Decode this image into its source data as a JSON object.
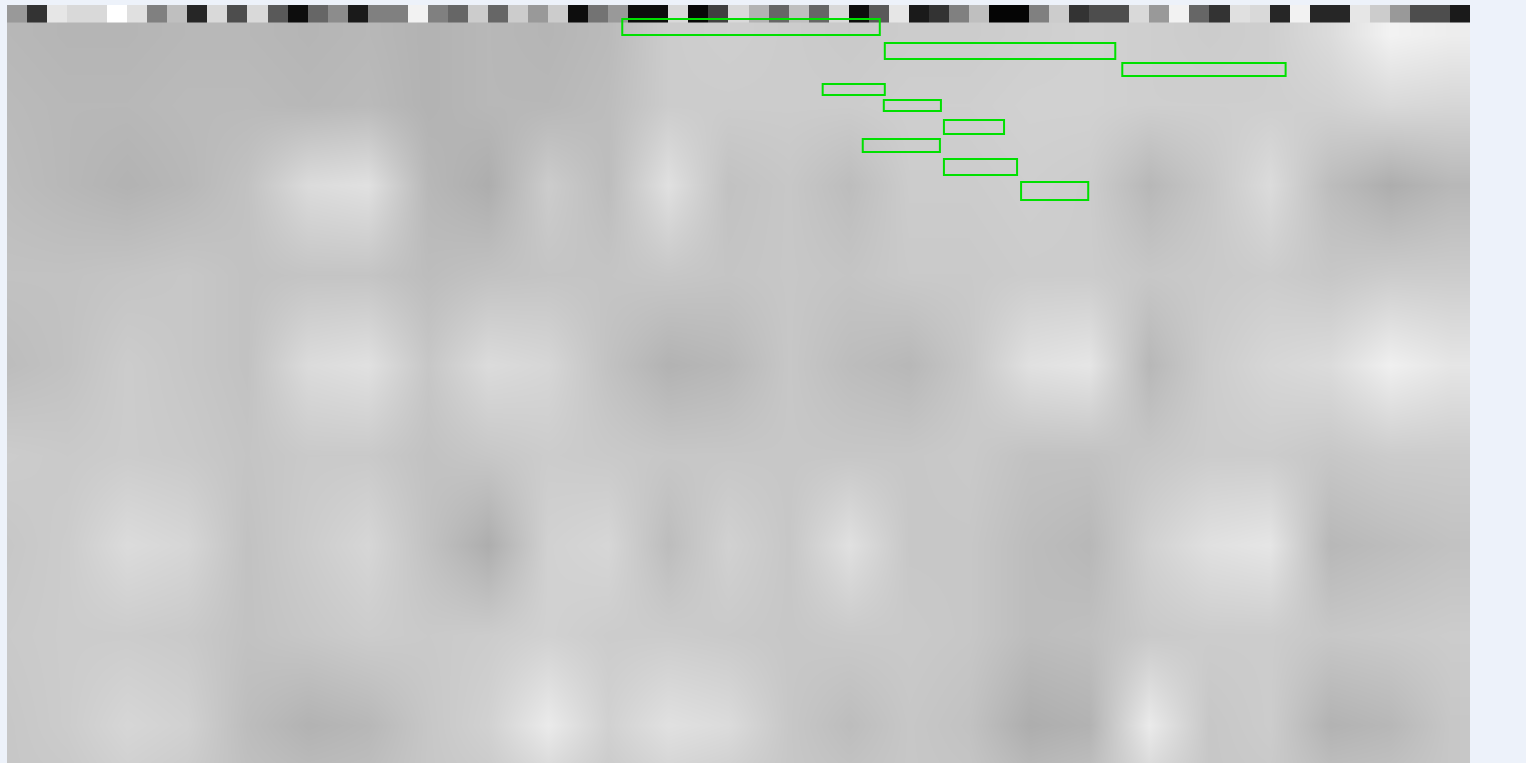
{
  "chart_data": {
    "type": "heatmap",
    "tick_labels": false,
    "xlim": [
      0,
      73
    ],
    "ylim": [
      37.9,
      0
    ],
    "zlim": [
      0,
      1
    ],
    "strip": [
      0.6,
      0.2,
      0.9,
      0.85,
      0.85,
      1.0,
      0.88,
      0.5,
      0.75,
      0.15,
      0.85,
      0.3,
      0.85,
      0.35,
      0.05,
      0.4,
      0.55,
      0.1,
      0.5,
      0.5,
      0.95,
      0.5,
      0.4,
      0.8,
      0.4,
      0.8,
      0.6,
      0.8,
      0.05,
      0.45,
      0.6,
      0.05,
      0.05,
      0.85,
      0.03,
      0.25,
      0.85,
      0.7,
      0.4,
      0.75,
      0.4,
      0.85,
      0.05,
      0.35,
      0.9,
      0.1,
      0.2,
      0.5,
      0.75,
      0.02,
      0.02,
      0.5,
      0.8,
      0.2,
      0.3,
      0.3,
      0.85,
      0.6,
      0.95,
      0.4,
      0.2,
      0.88,
      0.85,
      0.15,
      0.95,
      0.15,
      0.15,
      0.9,
      0.8,
      0.6,
      0.3,
      0.3,
      0.1
    ],
    "cells": {
      "x": [
        0,
        3,
        6,
        9,
        12,
        15,
        18,
        21,
        24,
        27,
        30,
        33,
        36,
        39,
        42,
        45,
        48,
        51,
        54,
        57,
        60,
        63,
        66,
        69,
        72
      ],
      "y": [
        1.5,
        5,
        9,
        13.5,
        18,
        22.5,
        27,
        31.5,
        36,
        38
      ],
      "z": [
        [
          0.72,
          0.71,
          0.71,
          0.72,
          0.72,
          0.71,
          0.72,
          0.7,
          0.72,
          0.71,
          0.73,
          0.8,
          0.81,
          0.8,
          0.79,
          0.8,
          0.8,
          0.81,
          0.82,
          0.81,
          0.8,
          0.81,
          0.86,
          0.95,
          0.93
        ],
        [
          0.73,
          0.72,
          0.72,
          0.73,
          0.73,
          0.72,
          0.73,
          0.7,
          0.72,
          0.72,
          0.74,
          0.8,
          0.8,
          0.8,
          0.8,
          0.81,
          0.81,
          0.82,
          0.82,
          0.81,
          0.81,
          0.81,
          0.82,
          0.85,
          0.84
        ],
        [
          0.74,
          0.72,
          0.7,
          0.72,
          0.76,
          0.86,
          0.88,
          0.72,
          0.68,
          0.8,
          0.74,
          0.88,
          0.76,
          0.78,
          0.74,
          0.8,
          0.8,
          0.81,
          0.8,
          0.72,
          0.78,
          0.86,
          0.74,
          0.68,
          0.72
        ],
        [
          0.76,
          0.76,
          0.77,
          0.78,
          0.76,
          0.77,
          0.77,
          0.74,
          0.76,
          0.77,
          0.77,
          0.78,
          0.77,
          0.78,
          0.77,
          0.79,
          0.79,
          0.8,
          0.8,
          0.78,
          0.79,
          0.8,
          0.78,
          0.8,
          0.8
        ],
        [
          0.74,
          0.76,
          0.8,
          0.78,
          0.76,
          0.86,
          0.88,
          0.78,
          0.86,
          0.84,
          0.76,
          0.7,
          0.72,
          0.78,
          0.74,
          0.72,
          0.78,
          0.88,
          0.9,
          0.72,
          0.8,
          0.84,
          0.86,
          0.94,
          0.9
        ],
        [
          0.8,
          0.79,
          0.8,
          0.79,
          0.77,
          0.79,
          0.79,
          0.76,
          0.78,
          0.8,
          0.79,
          0.78,
          0.78,
          0.78,
          0.78,
          0.78,
          0.79,
          0.76,
          0.76,
          0.78,
          0.8,
          0.8,
          0.78,
          0.8,
          0.8
        ],
        [
          0.78,
          0.8,
          0.86,
          0.84,
          0.76,
          0.8,
          0.84,
          0.76,
          0.68,
          0.82,
          0.84,
          0.74,
          0.82,
          0.78,
          0.88,
          0.78,
          0.78,
          0.74,
          0.72,
          0.82,
          0.88,
          0.9,
          0.72,
          0.74,
          0.76
        ],
        [
          0.79,
          0.8,
          0.8,
          0.79,
          0.76,
          0.78,
          0.8,
          0.79,
          0.8,
          0.82,
          0.8,
          0.8,
          0.79,
          0.78,
          0.79,
          0.79,
          0.78,
          0.74,
          0.75,
          0.79,
          0.8,
          0.8,
          0.78,
          0.79,
          0.8
        ],
        [
          0.78,
          0.8,
          0.84,
          0.82,
          0.74,
          0.7,
          0.72,
          0.78,
          0.82,
          0.92,
          0.82,
          0.88,
          0.86,
          0.78,
          0.74,
          0.78,
          0.76,
          0.68,
          0.7,
          0.92,
          0.78,
          0.8,
          0.7,
          0.72,
          0.78
        ],
        [
          0.78,
          0.79,
          0.82,
          0.8,
          0.75,
          0.73,
          0.74,
          0.78,
          0.8,
          0.86,
          0.8,
          0.84,
          0.82,
          0.78,
          0.76,
          0.78,
          0.77,
          0.72,
          0.74,
          0.86,
          0.78,
          0.79,
          0.74,
          0.75,
          0.78
        ]
      ]
    },
    "boxes": [
      {
        "x0": 30.7,
        "x1": 43.55,
        "y0": 0.7,
        "y1": 1.5
      },
      {
        "x0": 43.8,
        "x1": 55.3,
        "y0": 1.9,
        "y1": 2.7
      },
      {
        "x0": 55.65,
        "x1": 63.8,
        "y0": 2.9,
        "y1": 3.55
      },
      {
        "x0": 40.7,
        "x1": 43.8,
        "y0": 3.95,
        "y1": 4.5
      },
      {
        "x0": 43.75,
        "x1": 46.6,
        "y0": 4.75,
        "y1": 5.3
      },
      {
        "x0": 46.75,
        "x1": 49.75,
        "y0": 5.75,
        "y1": 6.45
      },
      {
        "x0": 42.7,
        "x1": 46.55,
        "y0": 6.7,
        "y1": 7.35
      },
      {
        "x0": 46.75,
        "x1": 50.4,
        "y0": 7.7,
        "y1": 8.5
      },
      {
        "x0": 50.6,
        "x1": 53.95,
        "y0": 8.85,
        "y1": 9.75
      }
    ]
  }
}
